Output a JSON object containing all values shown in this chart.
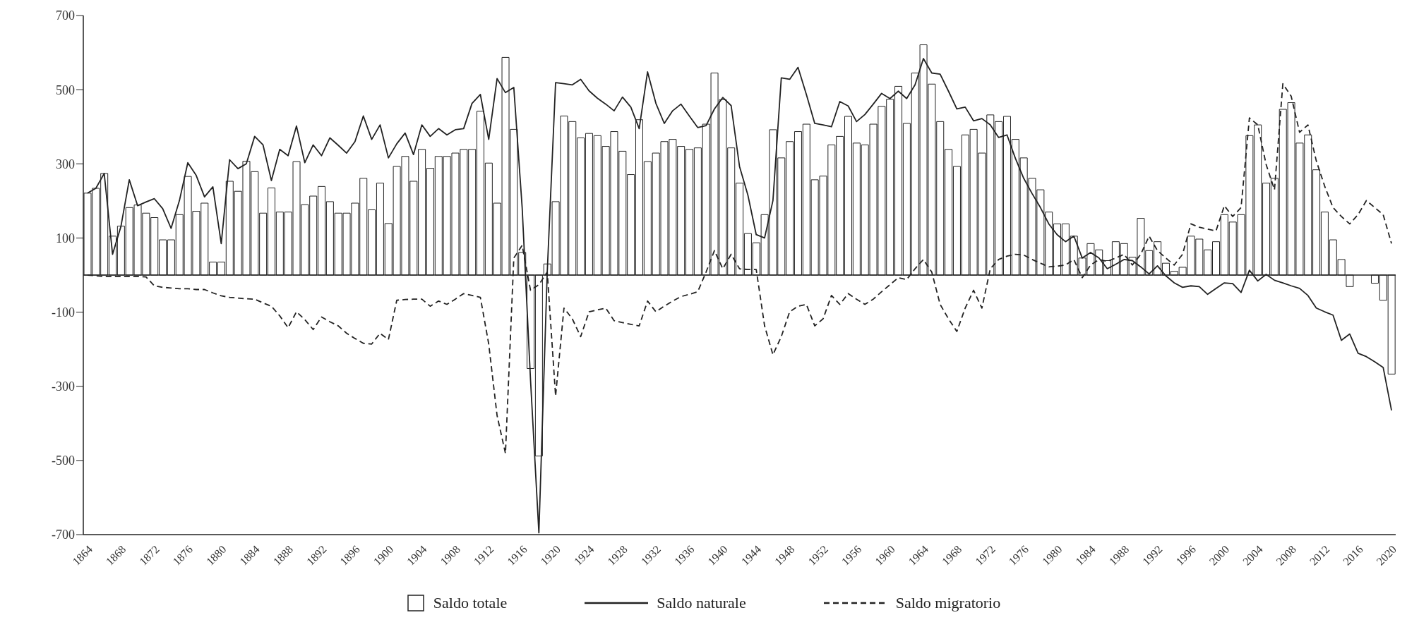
{
  "chart_data": {
    "type": "bar",
    "categories": [
      "1864",
      null,
      null,
      null,
      "1868",
      null,
      null,
      null,
      "1872",
      null,
      null,
      null,
      "1876",
      null,
      null,
      null,
      "1880",
      null,
      null,
      null,
      "1884",
      null,
      null,
      null,
      "1888",
      null,
      null,
      null,
      "1892",
      null,
      null,
      null,
      "1896",
      null,
      null,
      null,
      "1900",
      null,
      null,
      null,
      "1904",
      null,
      null,
      null,
      "1908",
      null,
      null,
      null,
      "1912",
      null,
      null,
      null,
      "1916",
      null,
      null,
      null,
      "1920",
      null,
      null,
      null,
      "1924",
      null,
      null,
      null,
      "1928",
      null,
      null,
      null,
      "1932",
      null,
      null,
      null,
      "1936",
      null,
      null,
      null,
      "1940",
      null,
      null,
      null,
      "1944",
      null,
      null,
      null,
      "1948",
      null,
      null,
      null,
      "1952",
      null,
      null,
      null,
      "1956",
      null,
      null,
      null,
      "1960",
      null,
      null,
      null,
      "1964",
      null,
      null,
      null,
      "1968",
      null,
      null,
      null,
      "1972",
      null,
      null,
      null,
      "1976",
      null,
      null,
      null,
      "1980",
      null,
      null,
      null,
      "1984",
      null,
      null,
      null,
      "1988",
      null,
      null,
      null,
      "1992",
      null,
      null,
      null,
      "1996",
      null,
      null,
      null,
      "2000",
      null,
      null,
      null,
      "2004",
      null,
      null,
      null,
      "2008",
      null,
      null,
      null,
      "2012",
      null,
      null,
      null,
      "2016",
      null,
      null,
      null,
      "2020"
    ],
    "series": [
      {
        "name": "Saldo totale",
        "color": "#ffffff",
        "values": [
          221,
          234,
          274,
          105,
          132,
          182,
          189,
          167,
          155,
          95,
          95,
          163,
          266,
          172,
          194,
          35,
          35,
          253,
          226,
          307,
          279,
          167,
          235,
          170,
          170,
          306,
          190,
          213,
          239,
          198,
          167,
          167,
          194,
          261,
          176,
          248,
          139,
          293,
          320,
          253,
          339,
          288,
          320,
          320,
          329,
          339,
          339,
          442,
          302,
          194,
          587,
          393,
          61,
          -252,
          -488,
          30,
          198,
          429,
          414,
          370,
          382,
          376,
          347,
          387,
          334,
          271,
          419,
          306,
          329,
          360,
          366,
          347,
          339,
          343,
          407,
          545,
          473,
          343,
          248,
          112,
          87,
          163,
          392,
          316,
          360,
          387,
          407,
          257,
          267,
          351,
          374,
          428,
          356,
          351,
          407,
          455,
          474,
          509,
          409,
          545,
          621,
          515,
          414,
          339,
          293,
          378,
          393,
          329,
          432,
          414,
          428,
          366,
          316,
          261,
          230,
          170,
          138,
          138,
          105,
          46,
          85,
          68,
          39,
          90,
          85,
          48,
          153,
          66,
          90,
          32,
          10,
          21,
          105,
          97,
          68,
          90,
          163,
          143,
          163,
          376,
          405,
          248,
          261,
          447,
          465,
          356,
          378,
          284,
          170,
          95,
          42,
          -31,
          null,
          null,
          -22,
          -68,
          -267
        ]
      },
      {
        "name": "Saldo naturale",
        "type": "line",
        "line_style": "solid",
        "color": "#222222",
        "values": [
          221,
          234,
          274,
          56,
          131,
          257,
          187,
          197,
          206,
          179,
          126,
          201,
          303,
          269,
          211,
          238,
          85,
          311,
          287,
          300,
          374,
          351,
          255,
          339,
          322,
          402,
          303,
          351,
          322,
          370,
          350,
          329,
          360,
          429,
          366,
          405,
          316,
          354,
          383,
          325,
          405,
          374,
          395,
          378,
          392,
          395,
          463,
          487,
          366,
          530,
          492,
          506,
          182,
          -283,
          -695,
          8,
          519,
          516,
          513,
          528,
          497,
          477,
          461,
          443,
          480,
          453,
          395,
          548,
          463,
          409,
          443,
          461,
          429,
          398,
          403,
          448,
          479,
          457,
          293,
          216,
          109,
          100,
          201,
          532,
          528,
          560,
          487,
          409,
          405,
          400,
          468,
          456,
          414,
          433,
          461,
          490,
          476,
          496,
          476,
          513,
          584,
          545,
          542,
          496,
          448,
          453,
          416,
          422,
          405,
          371,
          378,
          315,
          261,
          220,
          182,
          138,
          109,
          90,
          105,
          46,
          61,
          46,
          17,
          29,
          42,
          39,
          22,
          3,
          25,
          -2,
          -21,
          -33,
          -29,
          -31,
          -52,
          -36,
          -21,
          -23,
          -47,
          13,
          -16,
          2,
          -14,
          -21,
          -29,
          -36,
          -55,
          -89,
          -99,
          -108,
          -176,
          -159,
          -211,
          -220,
          -234,
          -249,
          -365
        ]
      },
      {
        "name": "Saldo migratorio",
        "type": "line",
        "line_style": "dashed",
        "color": "#222222",
        "values": [
          0,
          -2,
          -4,
          -4,
          -4,
          -4,
          -4,
          -5,
          -29,
          -33,
          -35,
          -37,
          -37,
          -39,
          -39,
          -48,
          -56,
          -60,
          -62,
          -64,
          -65,
          -75,
          -84,
          -110,
          -142,
          -99,
          -120,
          -147,
          -113,
          -126,
          -137,
          -157,
          -171,
          -184,
          -186,
          -157,
          -174,
          -68,
          -66,
          -65,
          -65,
          -84,
          -70,
          -79,
          -65,
          -50,
          -55,
          -60,
          -186,
          -379,
          -481,
          46,
          80,
          -41,
          -26,
          8,
          -326,
          -89,
          -118,
          -166,
          -99,
          -94,
          -89,
          -123,
          -128,
          -133,
          -137,
          -70,
          -99,
          -84,
          -70,
          -58,
          -52,
          -45,
          8,
          66,
          17,
          56,
          17,
          15,
          15,
          -137,
          -215,
          -166,
          -99,
          -84,
          -79,
          -137,
          -118,
          -55,
          -79,
          -50,
          -65,
          -79,
          -65,
          -45,
          -26,
          -7,
          -12,
          17,
          42,
          8,
          -79,
          -118,
          -152,
          -89,
          -41,
          -89,
          17,
          42,
          51,
          56,
          54,
          42,
          32,
          22,
          24,
          27,
          42,
          -7,
          27,
          42,
          37,
          46,
          56,
          27,
          56,
          105,
          66,
          46,
          27,
          56,
          138,
          129,
          124,
          119,
          187,
          158,
          182,
          424,
          405,
          298,
          230,
          516,
          482,
          385,
          405,
          308,
          240,
          182,
          158,
          138,
          163,
          201,
          182,
          163,
          85
        ]
      }
    ],
    "ylim": [
      -700,
      700
    ],
    "yticks": [
      -700,
      -500,
      -300,
      -100,
      100,
      300,
      500,
      700
    ],
    "ref_lines": [
      {
        "axis": "y",
        "value": 0
      }
    ],
    "legend": "bottom"
  }
}
